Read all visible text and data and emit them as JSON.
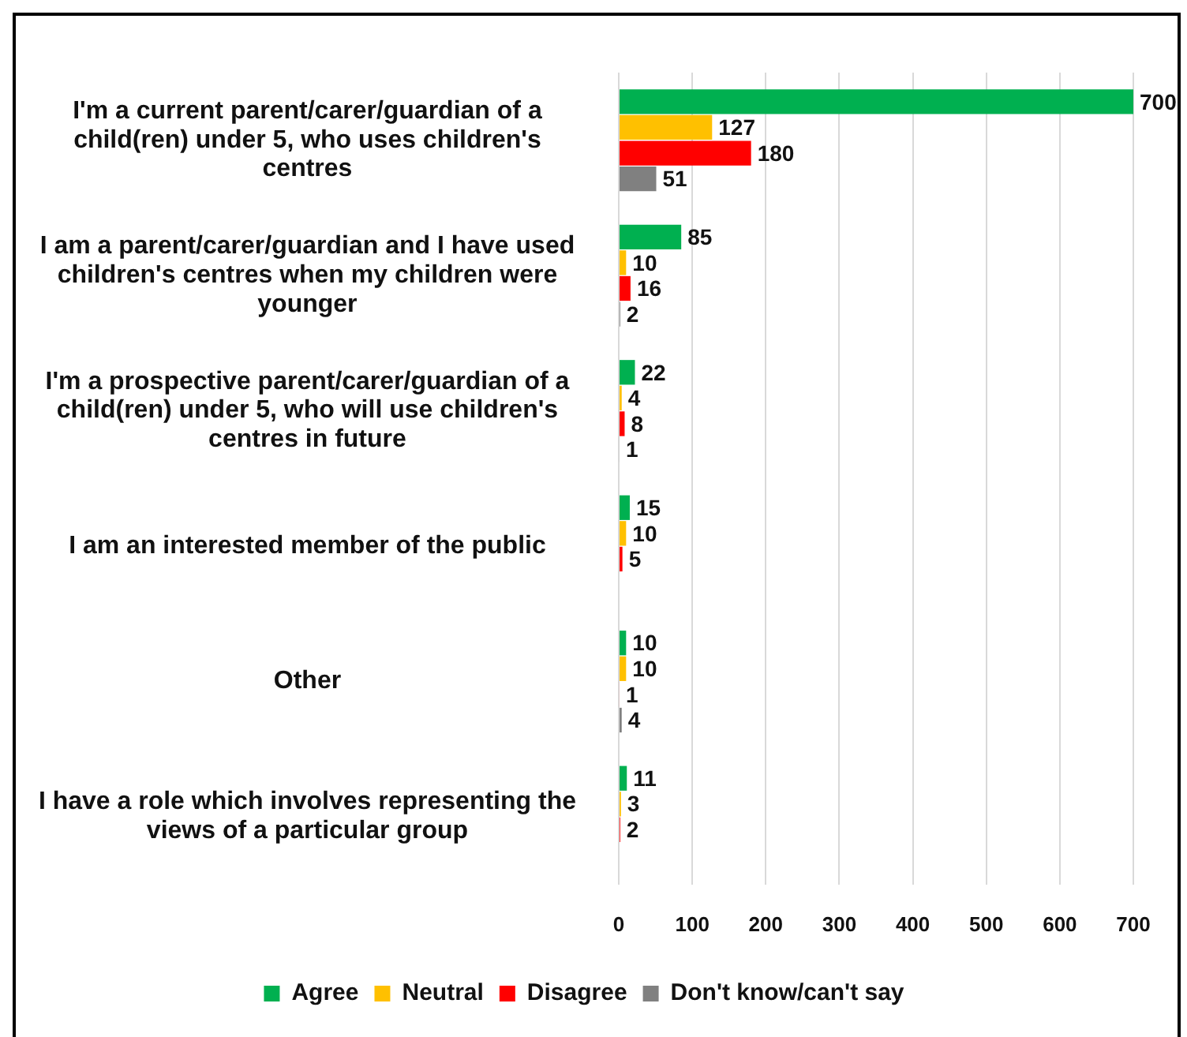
{
  "chart_data": {
    "type": "bar",
    "orientation": "horizontal",
    "categories": [
      "I'm a current parent/carer/guardian of a child(ren) under 5, who uses children's centres",
      "I am a parent/carer/guardian and I have used children's centres when my children were younger",
      "I'm a prospective parent/carer/guardian of a child(ren) under 5, who will use children's centres in future",
      "I am an interested member of the public",
      "Other",
      "I have a role which involves representing the views of a particular group"
    ],
    "series": [
      {
        "name": "Agree",
        "color": "#00b050",
        "values": [
          700,
          85,
          22,
          15,
          10,
          11
        ]
      },
      {
        "name": "Neutral",
        "color": "#ffc000",
        "values": [
          127,
          10,
          4,
          10,
          10,
          3
        ]
      },
      {
        "name": "Disagree",
        "color": "#ff0000",
        "values": [
          180,
          16,
          8,
          5,
          1,
          2
        ]
      },
      {
        "name": "Don't know/can't say",
        "color": "#808080",
        "values": [
          51,
          2,
          1,
          null,
          4,
          null
        ]
      }
    ],
    "xlim": [
      0,
      700
    ],
    "xticks": [
      0,
      100,
      200,
      300,
      400,
      500,
      600,
      700
    ],
    "grid": "x",
    "legend": "bottom",
    "data_labels": true
  }
}
